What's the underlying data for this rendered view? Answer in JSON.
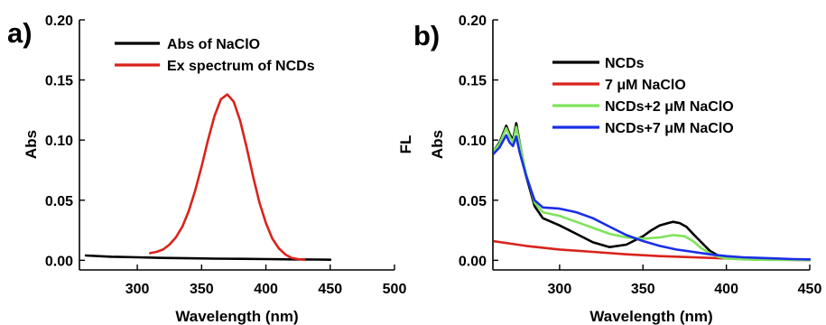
{
  "chart_data": [
    {
      "type": "line",
      "panel": "a)",
      "xlabel": "Wavelength (nm)",
      "ylabel": "Abs",
      "xlim": [
        255,
        500
      ],
      "ylim": [
        -0.008,
        0.2
      ],
      "xticks": [
        300,
        350,
        400,
        450,
        500
      ],
      "yticks": [
        0.0,
        0.05,
        0.1,
        0.15,
        0.2
      ],
      "ytick_labels": [
        "0.00",
        "0.05",
        "0.10",
        "0.15",
        "0.20"
      ],
      "legend_position": "top-left",
      "series": [
        {
          "name": "Abs of NaClO",
          "color": "#000000",
          "x": [
            260,
            280,
            300,
            320,
            340,
            360,
            380,
            400,
            420,
            440,
            450
          ],
          "y": [
            0.004,
            0.003,
            0.0025,
            0.002,
            0.0017,
            0.0014,
            0.0012,
            0.001,
            0.0008,
            0.0006,
            0.0005
          ]
        },
        {
          "name": "Ex spectrum of NCDs",
          "color": "#d9231c",
          "x": [
            310,
            315,
            320,
            325,
            330,
            335,
            340,
            345,
            350,
            355,
            360,
            365,
            370,
            375,
            380,
            385,
            390,
            395,
            400,
            405,
            410,
            415,
            420,
            425,
            430
          ],
          "y": [
            0.006,
            0.007,
            0.009,
            0.013,
            0.019,
            0.028,
            0.041,
            0.058,
            0.078,
            0.1,
            0.12,
            0.134,
            0.138,
            0.132,
            0.116,
            0.094,
            0.07,
            0.048,
            0.031,
            0.018,
            0.01,
            0.005,
            0.002,
            0.001,
            0.0005
          ]
        }
      ]
    },
    {
      "type": "line",
      "panel": "b)",
      "xlabel": "Wavelength (nm)",
      "ylabel": "Abs",
      "ylabel_right": "FL",
      "xlim": [
        260,
        450
      ],
      "ylim": [
        -0.008,
        0.2
      ],
      "xticks": [
        300,
        350,
        400,
        450
      ],
      "yticks": [
        0.0,
        0.05,
        0.1,
        0.15,
        0.2
      ],
      "ytick_labels": [
        "0.00",
        "0.05",
        "0.10",
        "0.15",
        "0.20"
      ],
      "legend_position": "top-center",
      "series": [
        {
          "name": "NCDs",
          "color": "#000000",
          "x": [
            260,
            264,
            268,
            270,
            272,
            274,
            276,
            280,
            285,
            290,
            300,
            310,
            320,
            330,
            340,
            350,
            355,
            360,
            365,
            368,
            372,
            376,
            380,
            385,
            390,
            395,
            400,
            410,
            420,
            430,
            440,
            450
          ],
          "y": [
            0.09,
            0.098,
            0.112,
            0.105,
            0.1,
            0.114,
            0.098,
            0.07,
            0.045,
            0.035,
            0.029,
            0.022,
            0.015,
            0.011,
            0.013,
            0.02,
            0.025,
            0.029,
            0.031,
            0.032,
            0.031,
            0.028,
            0.022,
            0.015,
            0.008,
            0.004,
            0.002,
            0.001,
            0.0005,
            0.0005,
            0.0004,
            0.0003
          ]
        },
        {
          "name": "7 μM NaClO",
          "color": "#d9231c",
          "x": [
            260,
            280,
            300,
            320,
            340,
            360,
            380,
            400,
            420,
            440,
            450
          ],
          "y": [
            0.016,
            0.012,
            0.009,
            0.007,
            0.005,
            0.0035,
            0.0025,
            0.0015,
            0.001,
            0.0005,
            0.0003
          ]
        },
        {
          "name": "NCDs+2 μM NaClO",
          "color": "#7ee35a",
          "x": [
            260,
            264,
            268,
            270,
            272,
            274,
            276,
            280,
            285,
            290,
            300,
            310,
            320,
            330,
            340,
            350,
            360,
            368,
            375,
            380,
            385,
            390,
            395,
            400,
            410,
            420,
            430,
            440,
            450
          ],
          "y": [
            0.09,
            0.097,
            0.11,
            0.103,
            0.098,
            0.111,
            0.097,
            0.072,
            0.048,
            0.04,
            0.037,
            0.032,
            0.027,
            0.022,
            0.019,
            0.018,
            0.019,
            0.021,
            0.02,
            0.016,
            0.01,
            0.006,
            0.003,
            0.0015,
            0.0008,
            0.0005,
            0.0004,
            0.0004,
            0.0003
          ]
        },
        {
          "name": "NCDs+7 μM NaClO",
          "color": "#1a2ee8",
          "x": [
            260,
            264,
            268,
            270,
            272,
            274,
            276,
            280,
            285,
            290,
            300,
            310,
            320,
            330,
            340,
            350,
            360,
            370,
            380,
            390,
            400,
            410,
            420,
            430,
            440,
            450
          ],
          "y": [
            0.088,
            0.094,
            0.104,
            0.098,
            0.095,
            0.103,
            0.09,
            0.07,
            0.05,
            0.044,
            0.043,
            0.04,
            0.035,
            0.028,
            0.021,
            0.016,
            0.012,
            0.009,
            0.007,
            0.005,
            0.0035,
            0.0025,
            0.002,
            0.0015,
            0.001,
            0.0008
          ]
        }
      ]
    }
  ]
}
